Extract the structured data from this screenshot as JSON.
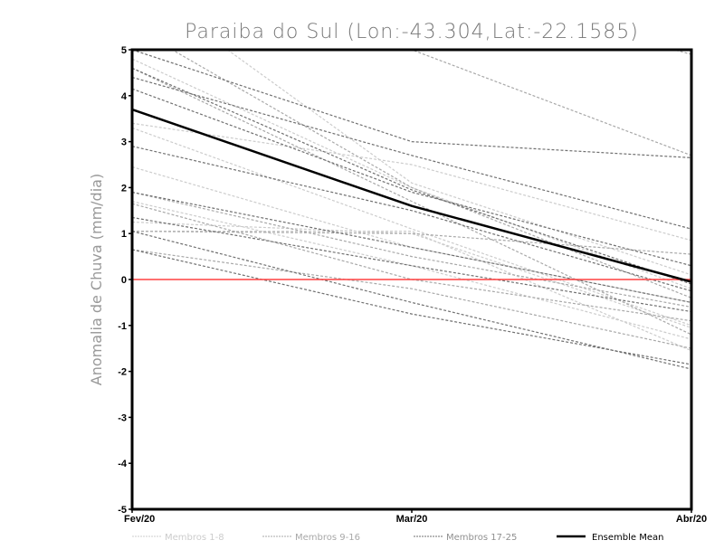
{
  "chart_data": {
    "type": "line",
    "title": "Paraiba do Sul (Lon:-43.304,Lat:-22.1585)",
    "xlabel": "",
    "ylabel": "Anomalia de Chuva (mm/dia)",
    "categories": [
      "Fev/20",
      "Mar/20",
      "Abr/20"
    ],
    "ylim": [
      -5,
      5
    ],
    "yticks": [
      "5",
      "4",
      "3",
      "2",
      "1",
      "0",
      "-1",
      "-2",
      "-3",
      "-4",
      "-5"
    ],
    "ytick_values": [
      5,
      4,
      3,
      2,
      1,
      0,
      -1,
      -2,
      -3,
      -4,
      -5
    ],
    "reference_line": {
      "value": 0,
      "color": "#ff4040"
    },
    "groups": [
      {
        "name": "Membros 1-8",
        "color": "#cccccc",
        "series": [
          [
            3.4,
            2.5,
            0.85
          ],
          [
            2.45,
            0.7,
            -0.5
          ],
          [
            4.8,
            2.0,
            -0.2
          ],
          [
            1.25,
            1.0,
            -1.05
          ],
          [
            1.7,
            0.3,
            -1.3
          ],
          [
            3.3,
            1.1,
            -1.0
          ],
          [
            1.05,
            1.05,
            -1.55
          ],
          [
            6.5,
            2.1,
            0.1
          ]
        ]
      },
      {
        "name": "Membros 9-16",
        "color": "#a8a8a8",
        "series": [
          [
            1.65,
            0.0,
            -0.9
          ],
          [
            6.8,
            5.0,
            2.7
          ],
          [
            8.0,
            6.5,
            4.9
          ],
          [
            1.05,
            1.0,
            0.55
          ],
          [
            0.65,
            -0.2,
            -1.5
          ],
          [
            4.6,
            1.7,
            -1.2
          ],
          [
            1.9,
            0.5,
            -0.6
          ],
          [
            5.5,
            2.0,
            -0.4
          ]
        ]
      },
      {
        "name": "Membros 17-25",
        "color": "#707070",
        "series": [
          [
            4.4,
            2.7,
            1.1
          ],
          [
            4.15,
            1.9,
            0.3
          ],
          [
            2.9,
            1.5,
            -0.25
          ],
          [
            1.35,
            0.3,
            -0.7
          ],
          [
            0.65,
            -0.75,
            -1.85
          ],
          [
            1.9,
            0.7,
            -0.5
          ],
          [
            5.0,
            3.0,
            2.65
          ],
          [
            1.05,
            -0.5,
            -1.95
          ],
          [
            4.6,
            1.95,
            -0.1
          ]
        ]
      }
    ],
    "ensemble_mean": {
      "name": "Ensemble Mean",
      "color": "#000000",
      "values": [
        3.7,
        1.6,
        -0.05
      ]
    },
    "legend_position": "bottom"
  }
}
